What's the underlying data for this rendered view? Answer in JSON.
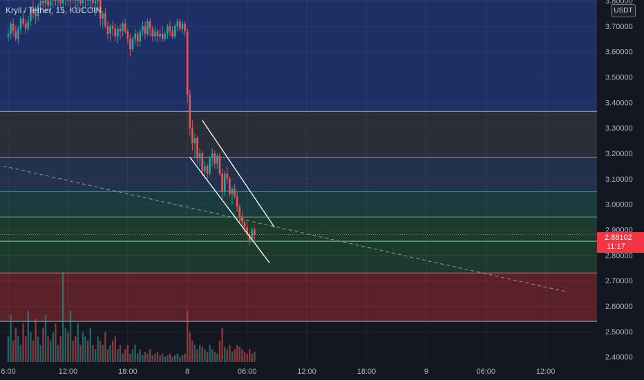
{
  "header": {
    "symbol_title": "Kryll / Tether, 15, KUCOIN"
  },
  "axis": {
    "currency": "USDT"
  },
  "current_price": {
    "value": "2.88102",
    "countdown": "11:17"
  },
  "colors": {
    "background": "#131722",
    "up": "#26a69a",
    "down": "#ef5350",
    "badge": "#f23645",
    "zone_blue": "#1e2f66",
    "zone_gray": "#2a2e39",
    "zone_slate": "#22324e",
    "zone_teal": "#1b3b3f",
    "zone_green": "#1d3a2e",
    "zone_red": "#5a2129"
  },
  "chart_data": {
    "type": "candlestick",
    "price_axis": {
      "ticks": [
        "3.80000",
        "3.70000",
        "3.60000",
        "3.50000",
        "3.40000",
        "3.30000",
        "3.20000",
        "3.10000",
        "3.00000",
        "2.90000",
        "2.80000",
        "2.70000",
        "2.60000",
        "2.50000",
        "2.40000"
      ],
      "range": [
        2.38,
        3.83
      ]
    },
    "time_axis": {
      "ticks": [
        {
          "label": "6:00",
          "slot": 0
        },
        {
          "label": "12:00",
          "slot": 24
        },
        {
          "label": "18:00",
          "slot": 48
        },
        {
          "label": "8",
          "slot": 72
        },
        {
          "label": "06:00",
          "slot": 96
        },
        {
          "label": "12:00",
          "slot": 120
        },
        {
          "label": "18:00",
          "slot": 144
        },
        {
          "label": "9",
          "slot": 168
        },
        {
          "label": "06:00",
          "slot": 192
        },
        {
          "label": "12:00",
          "slot": 216
        }
      ]
    },
    "horizontal_levels": [
      3.365,
      3.185,
      3.05,
      2.95,
      2.855,
      2.73,
      2.54
    ],
    "zones": [
      {
        "from": 3.365,
        "to": 3.83,
        "color": "zone_blue"
      },
      {
        "from": 3.185,
        "to": 3.365,
        "color": "zone_gray"
      },
      {
        "from": 3.05,
        "to": 3.185,
        "color": "zone_slate"
      },
      {
        "from": 2.95,
        "to": 3.05,
        "color": "zone_teal"
      },
      {
        "from": 2.73,
        "to": 2.95,
        "color": "zone_green"
      },
      {
        "from": 2.54,
        "to": 2.73,
        "color": "zone_red"
      }
    ],
    "current_price": 2.88102,
    "trend_line": {
      "from": {
        "slot": -2,
        "price": 3.15
      },
      "to": {
        "slot": 225,
        "price": 2.655
      }
    },
    "channel": {
      "upper": {
        "from": {
          "slot": 78,
          "price": 3.33
        },
        "to": {
          "slot": 107,
          "price": 2.91
        }
      },
      "lower": {
        "from": {
          "slot": 73,
          "price": 3.185
        },
        "to": {
          "slot": 105,
          "price": 2.77
        }
      }
    },
    "candles": [
      [
        3.66,
        3.69,
        3.64,
        3.67
      ],
      [
        3.67,
        3.72,
        3.65,
        3.71
      ],
      [
        3.71,
        3.73,
        3.66,
        3.68
      ],
      [
        3.68,
        3.7,
        3.64,
        3.65
      ],
      [
        3.65,
        3.7,
        3.63,
        3.69
      ],
      [
        3.69,
        3.74,
        3.67,
        3.73
      ],
      [
        3.73,
        3.76,
        3.7,
        3.71
      ],
      [
        3.71,
        3.73,
        3.67,
        3.69
      ],
      [
        3.69,
        3.74,
        3.68,
        3.72
      ],
      [
        3.72,
        3.78,
        3.7,
        3.77
      ],
      [
        3.77,
        3.8,
        3.73,
        3.75
      ],
      [
        3.75,
        3.78,
        3.71,
        3.74
      ],
      [
        3.74,
        3.79,
        3.72,
        3.78
      ],
      [
        3.78,
        3.82,
        3.75,
        3.8
      ],
      [
        3.8,
        3.83,
        3.77,
        3.79
      ],
      [
        3.79,
        3.82,
        3.75,
        3.81
      ],
      [
        3.81,
        3.83,
        3.76,
        3.78
      ],
      [
        3.78,
        3.81,
        3.74,
        3.8
      ],
      [
        3.8,
        3.83,
        3.77,
        3.82
      ],
      [
        3.82,
        3.83,
        3.78,
        3.8
      ],
      [
        3.8,
        3.82,
        3.76,
        3.81
      ],
      [
        3.81,
        3.83,
        3.77,
        3.79
      ],
      [
        3.79,
        3.82,
        3.75,
        3.81
      ],
      [
        3.81,
        3.83,
        3.78,
        3.82
      ],
      [
        3.82,
        3.83,
        3.78,
        3.8
      ],
      [
        3.8,
        3.83,
        3.76,
        3.82
      ],
      [
        3.82,
        3.83,
        3.79,
        3.81
      ],
      [
        3.81,
        3.83,
        3.77,
        3.8
      ],
      [
        3.8,
        3.82,
        3.76,
        3.81
      ],
      [
        3.81,
        3.83,
        3.78,
        3.79
      ],
      [
        3.79,
        3.82,
        3.75,
        3.81
      ],
      [
        3.81,
        3.83,
        3.77,
        3.82
      ],
      [
        3.82,
        3.83,
        3.78,
        3.8
      ],
      [
        3.8,
        3.83,
        3.76,
        3.82
      ],
      [
        3.82,
        3.83,
        3.77,
        3.79
      ],
      [
        3.79,
        3.82,
        3.74,
        3.8
      ],
      [
        3.8,
        3.83,
        3.76,
        3.82
      ],
      [
        3.82,
        3.83,
        3.7,
        3.73
      ],
      [
        3.73,
        3.76,
        3.69,
        3.75
      ],
      [
        3.75,
        3.77,
        3.69,
        3.7
      ],
      [
        3.7,
        3.72,
        3.65,
        3.67
      ],
      [
        3.67,
        3.71,
        3.64,
        3.7
      ],
      [
        3.7,
        3.72,
        3.66,
        3.69
      ],
      [
        3.69,
        3.71,
        3.64,
        3.66
      ],
      [
        3.66,
        3.7,
        3.63,
        3.69
      ],
      [
        3.69,
        3.71,
        3.65,
        3.68
      ],
      [
        3.68,
        3.72,
        3.66,
        3.71
      ],
      [
        3.71,
        3.73,
        3.67,
        3.68
      ],
      [
        3.68,
        3.69,
        3.63,
        3.65
      ],
      [
        3.65,
        3.67,
        3.58,
        3.61
      ],
      [
        3.61,
        3.66,
        3.6,
        3.65
      ],
      [
        3.65,
        3.69,
        3.63,
        3.67
      ],
      [
        3.67,
        3.68,
        3.62,
        3.64
      ],
      [
        3.64,
        3.69,
        3.62,
        3.68
      ],
      [
        3.68,
        3.72,
        3.66,
        3.7
      ],
      [
        3.7,
        3.72,
        3.65,
        3.67
      ],
      [
        3.67,
        3.73,
        3.66,
        3.72
      ],
      [
        3.72,
        3.73,
        3.66,
        3.69
      ],
      [
        3.69,
        3.7,
        3.64,
        3.66
      ],
      [
        3.66,
        3.7,
        3.64,
        3.68
      ],
      [
        3.68,
        3.69,
        3.64,
        3.66
      ],
      [
        3.66,
        3.69,
        3.64,
        3.67
      ],
      [
        3.67,
        3.7,
        3.64,
        3.65
      ],
      [
        3.65,
        3.68,
        3.64,
        3.67
      ],
      [
        3.67,
        3.71,
        3.65,
        3.7
      ],
      [
        3.7,
        3.72,
        3.66,
        3.68
      ],
      [
        3.68,
        3.7,
        3.65,
        3.66
      ],
      [
        3.66,
        3.71,
        3.65,
        3.7
      ],
      [
        3.7,
        3.73,
        3.68,
        3.72
      ],
      [
        3.72,
        3.73,
        3.68,
        3.69
      ],
      [
        3.69,
        3.72,
        3.67,
        3.71
      ],
      [
        3.71,
        3.72,
        3.66,
        3.68
      ],
      [
        3.68,
        3.69,
        3.4,
        3.43
      ],
      [
        3.43,
        3.45,
        3.27,
        3.3
      ],
      [
        3.3,
        3.33,
        3.21,
        3.24
      ],
      [
        3.24,
        3.28,
        3.18,
        3.26
      ],
      [
        3.26,
        3.27,
        3.16,
        3.18
      ],
      [
        3.18,
        3.22,
        3.15,
        3.2
      ],
      [
        3.2,
        3.21,
        3.11,
        3.13
      ],
      [
        3.13,
        3.17,
        3.1,
        3.15
      ],
      [
        3.15,
        3.16,
        3.1,
        3.12
      ],
      [
        3.12,
        3.19,
        3.11,
        3.18
      ],
      [
        3.18,
        3.22,
        3.15,
        3.2
      ],
      [
        3.2,
        3.21,
        3.14,
        3.16
      ],
      [
        3.16,
        3.2,
        3.14,
        3.19
      ],
      [
        3.19,
        3.2,
        3.11,
        3.12
      ],
      [
        3.12,
        3.14,
        3.02,
        3.05
      ],
      [
        3.05,
        3.13,
        3.03,
        3.12
      ],
      [
        3.12,
        3.15,
        3.08,
        3.1
      ],
      [
        3.1,
        3.11,
        3.03,
        3.04
      ],
      [
        3.04,
        3.07,
        3.0,
        3.06
      ],
      [
        3.06,
        3.08,
        3.02,
        3.03
      ],
      [
        3.03,
        3.05,
        2.97,
        2.99
      ],
      [
        2.99,
        3.0,
        2.93,
        2.95
      ],
      [
        2.95,
        2.97,
        2.91,
        2.93
      ],
      [
        2.93,
        2.94,
        2.89,
        2.91
      ],
      [
        2.91,
        2.93,
        2.87,
        2.88
      ],
      [
        2.88,
        2.89,
        2.84,
        2.86
      ],
      [
        2.86,
        2.91,
        2.85,
        2.9
      ],
      [
        2.9,
        2.91,
        2.86,
        2.88
      ]
    ],
    "volume": [
      0.3,
      0.55,
      0.25,
      0.4,
      0.3,
      0.2,
      0.45,
      0.3,
      0.6,
      0.35,
      0.25,
      0.5,
      0.3,
      0.2,
      0.4,
      0.55,
      0.3,
      0.25,
      0.35,
      0.45,
      0.2,
      0.3,
      1.05,
      0.4,
      0.35,
      0.6,
      0.25,
      0.3,
      0.45,
      0.2,
      0.35,
      0.3,
      0.25,
      0.4,
      0.2,
      0.15,
      0.3,
      0.25,
      0.2,
      0.35,
      0.15,
      0.2,
      0.25,
      0.3,
      0.15,
      0.2,
      0.1,
      0.15,
      0.2,
      0.1,
      0.15,
      0.2,
      0.1,
      0.15,
      0.08,
      0.12,
      0.1,
      0.15,
      0.08,
      0.1,
      0.12,
      0.08,
      0.1,
      0.06,
      0.08,
      0.1,
      0.06,
      0.08,
      0.1,
      0.06,
      0.08,
      0.1,
      0.6,
      0.35,
      0.25,
      0.2,
      0.15,
      0.2,
      0.18,
      0.15,
      0.12,
      0.2,
      0.15,
      0.12,
      0.1,
      0.25,
      0.4,
      0.18,
      0.15,
      0.2,
      0.12,
      0.15,
      0.2,
      0.18,
      0.15,
      0.12,
      0.1,
      0.15,
      0.1,
      0.12
    ]
  }
}
